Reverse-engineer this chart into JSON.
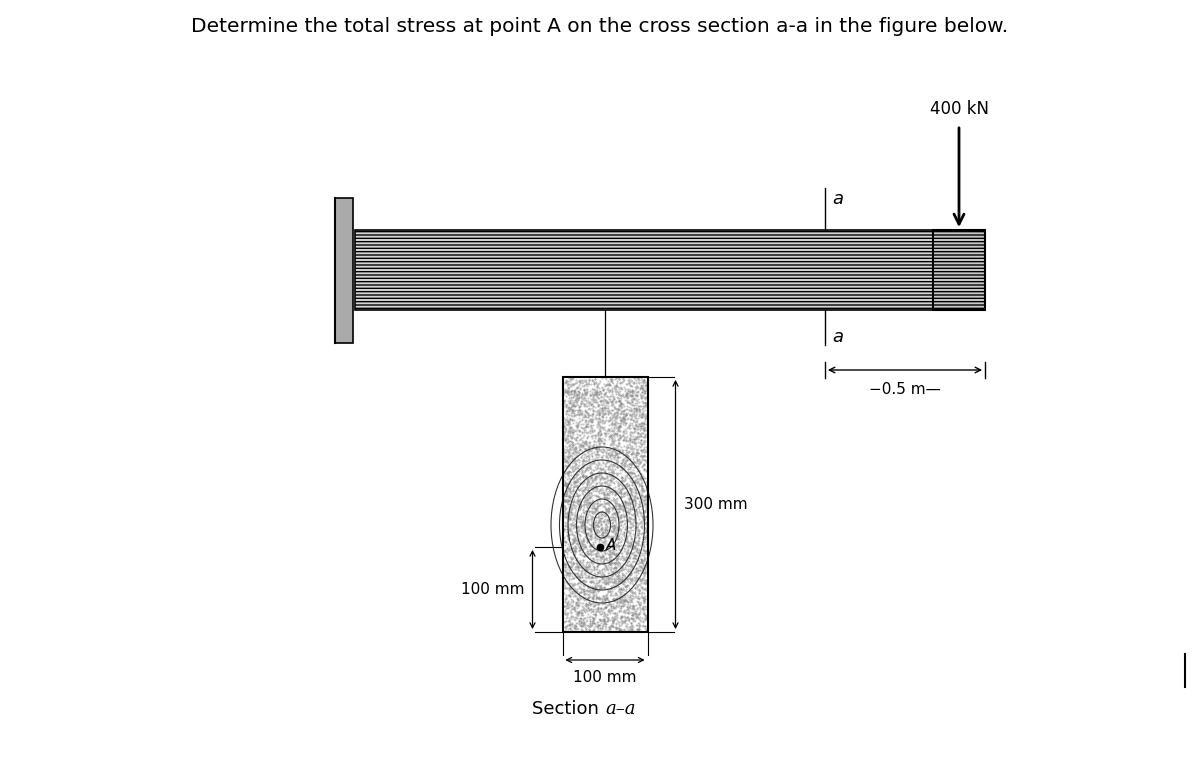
{
  "title": "Determine the total stress at point A on the cross section a-a in the figure below.",
  "title_fontsize": 14.5,
  "background_color": "#ffffff",
  "force_label": "400 kN",
  "distance_label": "−0.5 m—",
  "dim_100mm_vert": "100 mm",
  "dim_100mm_horiz": "100 mm",
  "dim_300mm": "300 mm",
  "section_label": "Section ",
  "section_label_italic": "a–a",
  "point_label": "A",
  "label_a": "a",
  "beam_color": "#cccccc",
  "wall_color": "#aaaaaa",
  "endcap_color": "#bbbbbb"
}
